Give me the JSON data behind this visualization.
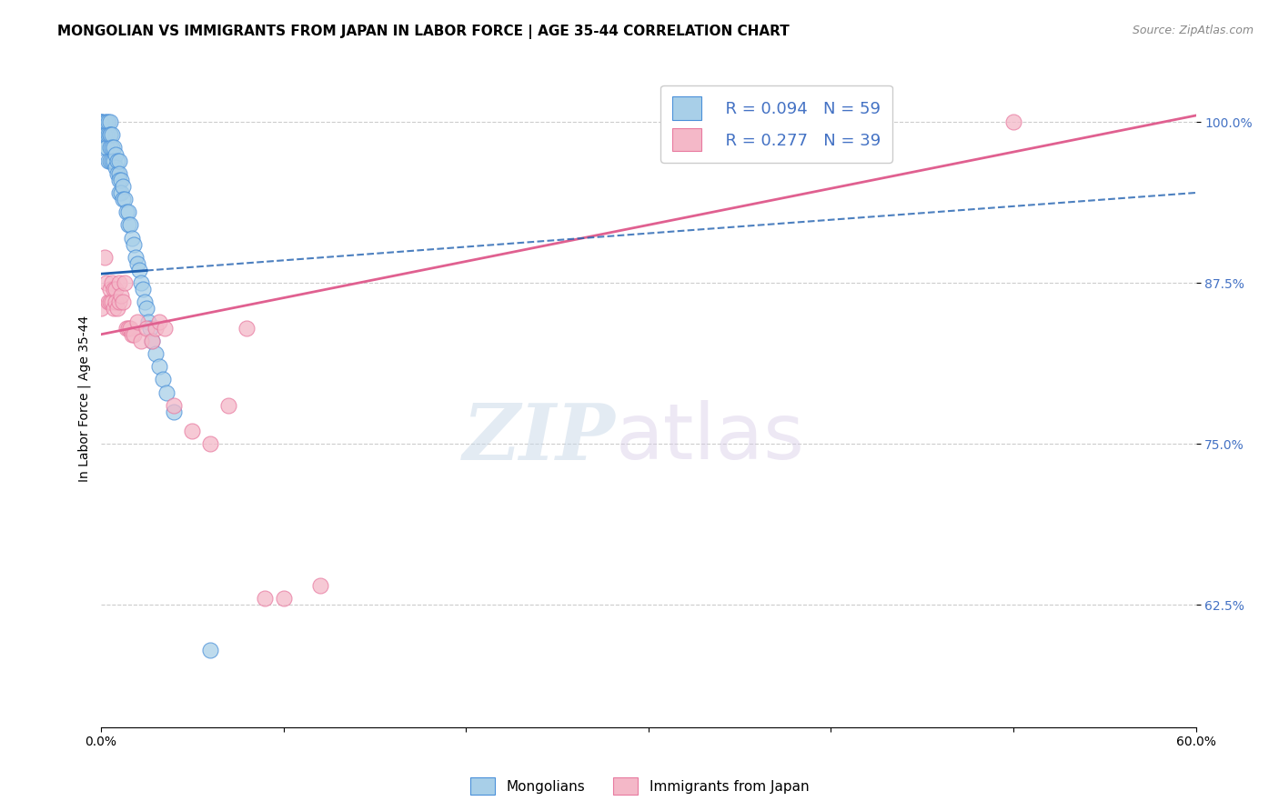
{
  "title": "MONGOLIAN VS IMMIGRANTS FROM JAPAN IN LABOR FORCE | AGE 35-44 CORRELATION CHART",
  "source": "Source: ZipAtlas.com",
  "ylabel": "In Labor Force | Age 35-44",
  "xlim": [
    0.0,
    0.6
  ],
  "ylim": [
    0.53,
    1.04
  ],
  "yticks": [
    0.625,
    0.75,
    0.875,
    1.0
  ],
  "ytick_labels": [
    "62.5%",
    "75.0%",
    "87.5%",
    "100.0%"
  ],
  "xtick_positions": [
    0.0,
    0.1,
    0.2,
    0.3,
    0.4,
    0.5,
    0.6
  ],
  "xtick_labels": [
    "0.0%",
    "",
    "",
    "",
    "",
    "",
    "60.0%"
  ],
  "blue_R": 0.094,
  "blue_N": 59,
  "pink_R": 0.277,
  "pink_N": 39,
  "blue_color": "#a8cfe8",
  "pink_color": "#f4b8c8",
  "blue_edge_color": "#4a90d9",
  "pink_edge_color": "#e87aa0",
  "blue_trend_color": "#2060b0",
  "pink_trend_color": "#e06090",
  "blue_x": [
    0.0,
    0.0,
    0.0,
    0.0,
    0.0,
    0.0,
    0.002,
    0.002,
    0.003,
    0.003,
    0.003,
    0.004,
    0.004,
    0.004,
    0.005,
    0.005,
    0.005,
    0.005,
    0.005,
    0.006,
    0.006,
    0.006,
    0.007,
    0.007,
    0.008,
    0.008,
    0.009,
    0.009,
    0.01,
    0.01,
    0.01,
    0.01,
    0.011,
    0.011,
    0.012,
    0.012,
    0.013,
    0.014,
    0.015,
    0.015,
    0.016,
    0.017,
    0.018,
    0.019,
    0.02,
    0.021,
    0.022,
    0.023,
    0.024,
    0.025,
    0.026,
    0.027,
    0.028,
    0.03,
    0.032,
    0.034,
    0.036,
    0.04,
    0.06
  ],
  "blue_y": [
    1.0,
    1.0,
    1.0,
    0.99,
    0.99,
    0.98,
    1.0,
    0.99,
    1.0,
    0.99,
    0.98,
    1.0,
    0.99,
    0.97,
    1.0,
    0.99,
    0.99,
    0.98,
    0.97,
    0.99,
    0.98,
    0.97,
    0.98,
    0.97,
    0.975,
    0.965,
    0.97,
    0.96,
    0.97,
    0.96,
    0.955,
    0.945,
    0.955,
    0.945,
    0.95,
    0.94,
    0.94,
    0.93,
    0.93,
    0.92,
    0.92,
    0.91,
    0.905,
    0.895,
    0.89,
    0.885,
    0.875,
    0.87,
    0.86,
    0.855,
    0.845,
    0.84,
    0.83,
    0.82,
    0.81,
    0.8,
    0.79,
    0.775,
    0.59
  ],
  "pink_x": [
    0.0,
    0.002,
    0.003,
    0.004,
    0.005,
    0.005,
    0.006,
    0.006,
    0.007,
    0.007,
    0.008,
    0.008,
    0.009,
    0.01,
    0.01,
    0.011,
    0.012,
    0.013,
    0.014,
    0.015,
    0.016,
    0.017,
    0.018,
    0.02,
    0.022,
    0.025,
    0.028,
    0.03,
    0.032,
    0.035,
    0.04,
    0.05,
    0.06,
    0.07,
    0.08,
    0.09,
    0.1,
    0.12,
    0.5
  ],
  "pink_y": [
    0.855,
    0.895,
    0.875,
    0.86,
    0.86,
    0.87,
    0.875,
    0.86,
    0.87,
    0.855,
    0.87,
    0.86,
    0.855,
    0.875,
    0.86,
    0.865,
    0.86,
    0.875,
    0.84,
    0.84,
    0.84,
    0.835,
    0.835,
    0.845,
    0.83,
    0.84,
    0.83,
    0.84,
    0.845,
    0.84,
    0.78,
    0.76,
    0.75,
    0.78,
    0.84,
    0.63,
    0.63,
    0.64,
    1.0
  ],
  "blue_trend_x0": 0.0,
  "blue_trend_x1": 0.6,
  "blue_trend_y0": 0.882,
  "blue_trend_y1": 0.945,
  "pink_trend_x0": 0.0,
  "pink_trend_x1": 0.6,
  "pink_trend_y0": 0.835,
  "pink_trend_y1": 1.005,
  "watermark_zip": "ZIP",
  "watermark_atlas": "atlas",
  "legend_blue_label": "Mongolians",
  "legend_pink_label": "Immigrants from Japan",
  "title_fontsize": 11,
  "axis_label_fontsize": 10,
  "tick_fontsize": 10,
  "legend_fontsize": 13
}
